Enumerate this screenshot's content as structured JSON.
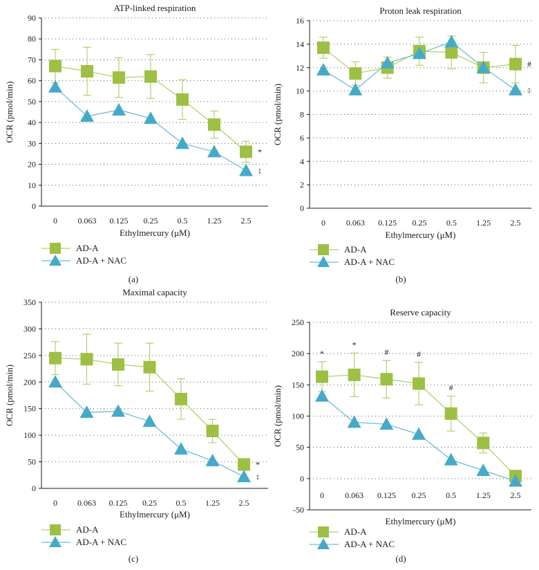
{
  "colors": {
    "series_a": "#9dc044",
    "series_b": "#45aac8",
    "series_a_line": "#b5cf6a",
    "series_b_line": "#6bbcd6"
  },
  "chart_data": [
    {
      "type": "line",
      "panel": "(a)",
      "title": "ATP-linked respiration",
      "ylabel": "OCR (pmol/min)",
      "xlabel": "Ethylmercury (μM)",
      "categories": [
        "0",
        "0.063",
        "0.125",
        "0.25",
        "0.5",
        "1.25",
        "2.5"
      ],
      "ylim": [
        0,
        90
      ],
      "yticks": [
        0,
        10,
        20,
        30,
        40,
        50,
        60,
        70,
        80,
        90
      ],
      "grid": true,
      "series": [
        {
          "name": "AD-A",
          "marker": "square",
          "values": [
            67,
            64.5,
            61.5,
            62,
            51,
            39,
            26
          ],
          "errors": [
            8,
            11.5,
            9.5,
            10.5,
            9.5,
            6.5,
            5
          ]
        },
        {
          "name": "AD-A + NAC",
          "marker": "triangle",
          "values": [
            57,
            43,
            46,
            42,
            30,
            26,
            17
          ],
          "errors": [
            0,
            0,
            0,
            0,
            0,
            0,
            0
          ]
        }
      ],
      "annotations": [
        {
          "text": "*",
          "series": 0,
          "index": 6,
          "side": "right"
        },
        {
          "text": "↕",
          "series": 1,
          "index": 6,
          "side": "right"
        }
      ],
      "legend": [
        "AD-A",
        "AD-A + NAC"
      ]
    },
    {
      "type": "line",
      "panel": "(b)",
      "title": "Proton leak respiration",
      "ylabel": "OCR (pmol/min)",
      "xlabel": "Ethylmercury (μM)",
      "categories": [
        "0",
        "0.063",
        "0.125",
        "0.25",
        "0.5",
        "1.25",
        "2.5"
      ],
      "ylim": [
        0,
        16
      ],
      "yticks": [
        0,
        2,
        4,
        6,
        8,
        10,
        12,
        14,
        16
      ],
      "grid": true,
      "series": [
        {
          "name": "AD-A",
          "marker": "square",
          "values": [
            13.7,
            11.5,
            12,
            13.4,
            13.3,
            12,
            12.3
          ],
          "errors": [
            0.9,
            1.0,
            0.9,
            1.2,
            1.4,
            1.3,
            1.6
          ]
        },
        {
          "name": "AD-A + NAC",
          "marker": "triangle",
          "values": [
            11.8,
            10.1,
            12.4,
            13.2,
            14.2,
            12,
            10.1
          ],
          "errors": [
            0,
            0,
            0,
            0,
            0,
            0,
            0
          ]
        }
      ],
      "annotations": [
        {
          "text": "#",
          "series": 0,
          "index": 6,
          "side": "right"
        },
        {
          "text": "↕",
          "series": 1,
          "index": 6,
          "side": "right"
        }
      ],
      "legend": [
        "AD-A",
        "AD-A + NAC"
      ]
    },
    {
      "type": "line",
      "panel": "(c)",
      "title": "Maximal capacity",
      "ylabel": "OCR (pmol/min)",
      "xlabel": "Ethylmercury (μM)",
      "categories": [
        "0",
        "0.063",
        "0.125",
        "0.25",
        "0.5",
        "1.25",
        "2.5"
      ],
      "ylim": [
        0,
        350
      ],
      "yticks": [
        0,
        50,
        100,
        150,
        200,
        250,
        300,
        350
      ],
      "grid": true,
      "series": [
        {
          "name": "AD-A",
          "marker": "square",
          "values": [
            245,
            243,
            233,
            228,
            168,
            108,
            45
          ],
          "errors": [
            31,
            47,
            40,
            45,
            38,
            22,
            10
          ]
        },
        {
          "name": "AD-A + NAC",
          "marker": "triangle",
          "values": [
            200,
            143,
            145,
            126,
            74,
            52,
            22
          ],
          "errors": [
            0,
            0,
            0,
            0,
            0,
            0,
            0
          ]
        }
      ],
      "annotations": [
        {
          "text": "*",
          "series": 0,
          "index": 6,
          "side": "right"
        },
        {
          "text": "↕",
          "series": 1,
          "index": 6,
          "side": "right"
        }
      ],
      "legend": [
        "AD-A",
        "AD-A + NAC"
      ]
    },
    {
      "type": "line",
      "panel": "(d)",
      "title": "Reserve capacity",
      "ylabel": "OCR (pmol/min)",
      "xlabel": "Ethylmercury (μM)",
      "categories": [
        "0",
        "0.063",
        "0.125",
        "0.25",
        "0.5",
        "1.25",
        "2.5"
      ],
      "ylim": [
        -50,
        250
      ],
      "yticks": [
        -50,
        0,
        50,
        100,
        150,
        200,
        250
      ],
      "grid": true,
      "series": [
        {
          "name": "AD-A",
          "marker": "square",
          "values": [
            163,
            166,
            159,
            152,
            104,
            57,
            4
          ],
          "errors": [
            24,
            35,
            30,
            34,
            28,
            16,
            5
          ]
        },
        {
          "name": "AD-A + NAC",
          "marker": "triangle",
          "values": [
            132,
            90,
            87,
            71,
            30,
            13,
            -4
          ],
          "errors": [
            0,
            0,
            0,
            0,
            0,
            0,
            0
          ]
        }
      ],
      "annotations": [
        {
          "text": "*",
          "series": 0,
          "index": 0,
          "side": "above"
        },
        {
          "text": "*",
          "series": 0,
          "index": 1,
          "side": "above"
        },
        {
          "text": "#",
          "series": 0,
          "index": 2,
          "side": "above"
        },
        {
          "text": "#",
          "series": 0,
          "index": 3,
          "side": "above"
        },
        {
          "text": "#",
          "series": 0,
          "index": 4,
          "side": "above"
        }
      ],
      "legend": [
        "AD-A",
        "AD-A + NAC"
      ]
    }
  ]
}
